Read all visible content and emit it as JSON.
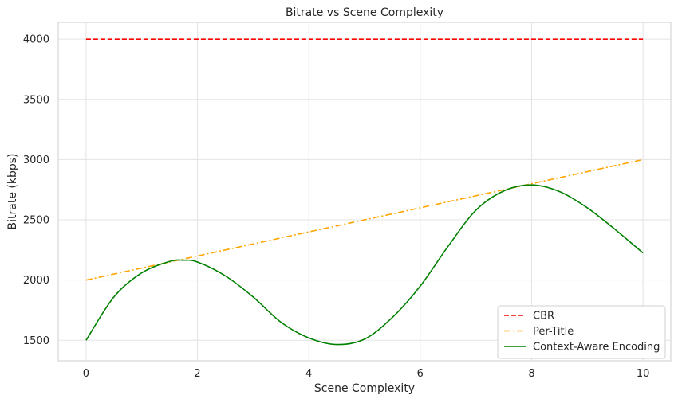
{
  "chart_data": {
    "type": "line",
    "title": "Bitrate vs Scene Complexity",
    "xlabel": "Scene Complexity",
    "ylabel": "Bitrate (kbps)",
    "xlim": [
      -0.5,
      10.5
    ],
    "ylim": [
      1330,
      4140
    ],
    "xticks": [
      0,
      2,
      4,
      6,
      8,
      10
    ],
    "yticks": [
      1500,
      2000,
      2500,
      3000,
      3500,
      4000
    ],
    "grid": true,
    "legend_position": "lower-right",
    "series": [
      {
        "name": "CBR",
        "color": "#ff0000",
        "style": "dashed",
        "x": [
          0,
          10
        ],
        "y": [
          4000,
          4000
        ]
      },
      {
        "name": "Per-Title",
        "color": "#ffa500",
        "style": "dashdot",
        "x": [
          0,
          10
        ],
        "y": [
          2000,
          3000
        ]
      },
      {
        "name": "Context-Aware Encoding",
        "color": "#008000",
        "style": "solid",
        "x": [
          0,
          0.5,
          1,
          1.5,
          1.75,
          2,
          2.5,
          3,
          3.5,
          4,
          4.5,
          5,
          5.5,
          6,
          6.5,
          7,
          7.5,
          8,
          8.5,
          9,
          9.5,
          10
        ],
        "y": [
          1500,
          1860,
          2060,
          2155,
          2165,
          2150,
          2035,
          1860,
          1650,
          1520,
          1465,
          1510,
          1690,
          1950,
          2280,
          2580,
          2740,
          2790,
          2735,
          2600,
          2420,
          2225
        ]
      }
    ]
  }
}
